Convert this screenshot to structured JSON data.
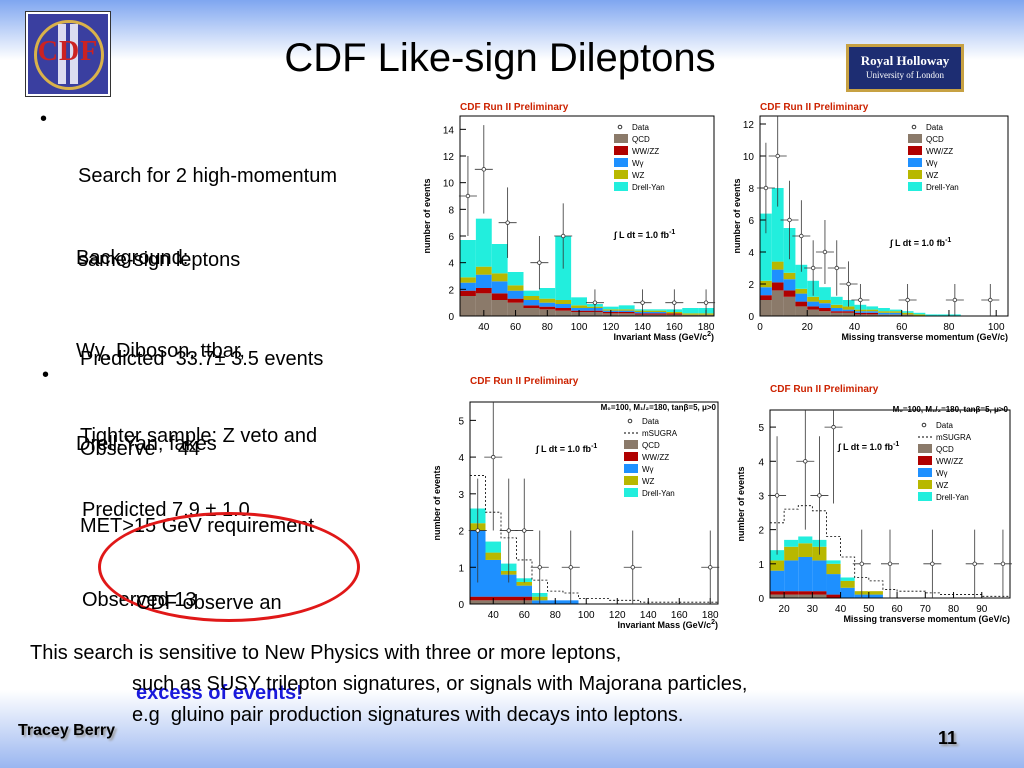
{
  "slide": {
    "title": "CDF Like-sign Dileptons",
    "logo_left_text": "CDF",
    "logo_right_line1": "Royal Holloway",
    "logo_right_line2": "University of London",
    "bullet1_line1": "Search for 2 high-momentum",
    "bullet1_line2": "same-sign leptons",
    "background_line1": "Background:",
    "background_line2": "Wγ, Diboson, ttbar,",
    "background_line3": "Drell-Yan, fakes",
    "pred1_line1": "Predicted  33.7± 3.5 events",
    "pred1_line2": "Observe    44",
    "bullet2_line1": "Tighter sample: Z veto and",
    "bullet2_line2": "MET>15 GeV requirement",
    "pred2_line1": "Predicted 7.9 ± 1.0",
    "pred2_line2": "Observed 13",
    "excess_line1": "CDF observe an",
    "excess_line2": "excess of events!",
    "bottom_line1": "This search is sensitive to New Physics with three or more leptons,",
    "bottom_line2": "such as SUSY trilepton signatures, or signals with Majorana particles,",
    "bottom_line3": "e.g  gluino pair production signatures with decays into leptons.",
    "footer_name": "Tracey Berry",
    "page_number": "11",
    "bullet_char": "•"
  },
  "colors": {
    "QCD": "#8b7a6a",
    "WW/ZZ": "#b00000",
    "Wγ": "#1e90ff",
    "WZ": "#b8b800",
    "Drell-Yan": "#22eedd",
    "label_red": "#cc2200",
    "excess_blue": "#1a1adc"
  },
  "chart_data": [
    {
      "type": "bar",
      "header": "CDF Run II Preliminary",
      "lumi": "∫ L dt = 1.0 fb",
      "lumi_sup": "-1",
      "param_line": "",
      "xlabel": "Invariant Mass (GeV/c",
      "xlabel_sup": "2",
      "xlabel_end": ")",
      "ylabel": "number of events",
      "x_range": [
        25,
        185
      ],
      "ylim": [
        0,
        15
      ],
      "yticks": [
        0,
        2,
        4,
        6,
        8,
        10,
        12,
        14
      ],
      "xticks": [
        40,
        60,
        80,
        100,
        120,
        140,
        160,
        180
      ],
      "bin_edges": [
        25,
        35,
        45,
        55,
        65,
        75,
        85,
        95,
        105,
        115,
        125,
        135,
        145,
        155,
        165,
        175,
        185
      ],
      "legend": [
        "Data",
        "QCD",
        "WW/ZZ",
        "Wγ",
        "WZ",
        "Drell-Yan"
      ],
      "series": [
        {
          "name": "QCD",
          "values": [
            1.5,
            1.7,
            1.2,
            1.0,
            0.6,
            0.5,
            0.4,
            0.3,
            0.3,
            0.2,
            0.2,
            0.1,
            0.1,
            0.1,
            0.1,
            0.1
          ]
        },
        {
          "name": "WW/ZZ",
          "values": [
            0.4,
            0.4,
            0.5,
            0.3,
            0.2,
            0.2,
            0.2,
            0.1,
            0.1,
            0.1,
            0.1,
            0.1,
            0.1,
            0.1,
            0.0,
            0.0
          ]
        },
        {
          "name": "Wγ",
          "values": [
            0.6,
            1.0,
            0.9,
            0.6,
            0.4,
            0.3,
            0.3,
            0.2,
            0.2,
            0.1,
            0.1,
            0.1,
            0.1,
            0.0,
            0.0,
            0.0
          ]
        },
        {
          "name": "WZ",
          "values": [
            0.4,
            0.6,
            0.6,
            0.4,
            0.3,
            0.3,
            0.3,
            0.2,
            0.1,
            0.1,
            0.1,
            0.1,
            0.1,
            0.1,
            0.1,
            0.1
          ]
        },
        {
          "name": "Drell-Yan",
          "values": [
            2.8,
            3.6,
            2.2,
            1.0,
            0.4,
            0.8,
            4.8,
            0.6,
            0.2,
            0.2,
            0.3,
            0.1,
            0.1,
            0.2,
            0.4,
            0.4
          ]
        }
      ],
      "data_points": [
        {
          "x": 30,
          "y": 9
        },
        {
          "x": 40,
          "y": 11
        },
        {
          "x": 55,
          "y": 7
        },
        {
          "x": 75,
          "y": 4
        },
        {
          "x": 90,
          "y": 6
        },
        {
          "x": 110,
          "y": 1
        },
        {
          "x": 140,
          "y": 1
        },
        {
          "x": 160,
          "y": 1
        },
        {
          "x": 180,
          "y": 1
        }
      ]
    },
    {
      "type": "bar",
      "header": "CDF Run II Preliminary",
      "lumi": "∫ L dt = 1.0 fb",
      "lumi_sup": "-1",
      "param_line": "",
      "xlabel": "Missing transverse momentum (GeV/c)",
      "xlabel_sup": "",
      "xlabel_end": "",
      "ylabel": "number of events",
      "x_range": [
        0,
        105
      ],
      "ylim": [
        0,
        12.5
      ],
      "yticks": [
        0,
        2,
        4,
        6,
        8,
        10,
        12
      ],
      "xticks": [
        0,
        20,
        40,
        60,
        80,
        100
      ],
      "bin_edges": [
        0,
        5,
        10,
        15,
        20,
        25,
        30,
        35,
        40,
        45,
        50,
        55,
        60,
        65,
        70,
        75,
        80,
        85,
        90,
        95,
        100,
        105
      ],
      "legend": [
        "Data",
        "QCD",
        "WW/ZZ",
        "Wγ",
        "WZ",
        "Drell-Yan"
      ],
      "series": [
        {
          "name": "QCD",
          "values": [
            1.0,
            1.6,
            1.2,
            0.6,
            0.4,
            0.3,
            0.2,
            0.2,
            0.1,
            0.1,
            0.1,
            0.1,
            0.1,
            0.0,
            0.0,
            0.0,
            0.0,
            0.0,
            0.0,
            0.0,
            0.0
          ]
        },
        {
          "name": "WW/ZZ",
          "values": [
            0.3,
            0.5,
            0.4,
            0.3,
            0.2,
            0.2,
            0.1,
            0.1,
            0.1,
            0.1,
            0.0,
            0.0,
            0.0,
            0.0,
            0.0,
            0.0,
            0.0,
            0.0,
            0.0,
            0.0,
            0.0
          ]
        },
        {
          "name": "Wγ",
          "values": [
            0.5,
            0.8,
            0.7,
            0.5,
            0.3,
            0.3,
            0.2,
            0.1,
            0.1,
            0.1,
            0.1,
            0.1,
            0.0,
            0.0,
            0.0,
            0.0,
            0.0,
            0.0,
            0.0,
            0.0,
            0.0
          ]
        },
        {
          "name": "WZ",
          "values": [
            0.4,
            0.5,
            0.4,
            0.3,
            0.3,
            0.2,
            0.2,
            0.2,
            0.1,
            0.1,
            0.1,
            0.1,
            0.1,
            0.1,
            0.0,
            0.0,
            0.0,
            0.0,
            0.0,
            0.0,
            0.0
          ]
        },
        {
          "name": "Drell-Yan",
          "values": [
            4.2,
            4.6,
            2.8,
            1.5,
            1.0,
            0.8,
            0.5,
            0.4,
            0.3,
            0.2,
            0.2,
            0.1,
            0.1,
            0.1,
            0.1,
            0.1,
            0.1,
            0.0,
            0.0,
            0.0,
            0.0
          ]
        }
      ],
      "data_points": [
        {
          "x": 2.5,
          "y": 8
        },
        {
          "x": 7.5,
          "y": 10
        },
        {
          "x": 12.5,
          "y": 6
        },
        {
          "x": 17.5,
          "y": 5
        },
        {
          "x": 22.5,
          "y": 3
        },
        {
          "x": 27.5,
          "y": 4
        },
        {
          "x": 32.5,
          "y": 3
        },
        {
          "x": 37.5,
          "y": 2
        },
        {
          "x": 42.5,
          "y": 1
        },
        {
          "x": 62.5,
          "y": 1
        },
        {
          "x": 82.5,
          "y": 1
        },
        {
          "x": 97.5,
          "y": 1
        }
      ]
    },
    {
      "type": "bar",
      "header": "CDF Run II Preliminary",
      "lumi": "∫ L dt = 1.0 fb",
      "lumi_sup": "-1",
      "param_line": "M₀=100, M₁/₂=180, tanβ=5, μ>0",
      "xlabel": "Invariant Mass (GeV/c",
      "xlabel_sup": "2",
      "xlabel_end": ")",
      "ylabel": "number of events",
      "x_range": [
        25,
        185
      ],
      "ylim": [
        0,
        5.5
      ],
      "yticks": [
        0,
        1,
        2,
        3,
        4,
        5
      ],
      "xticks": [
        40,
        60,
        80,
        100,
        120,
        140,
        160,
        180
      ],
      "bin_edges": [
        25,
        35,
        45,
        55,
        65,
        75,
        85,
        95,
        105,
        115,
        125,
        135,
        145,
        155,
        165,
        175,
        185
      ],
      "legend": [
        "Data",
        "mSUGRA",
        "QCD",
        "WW/ZZ",
        "Wγ",
        "WZ",
        "Drell-Yan"
      ],
      "msugra": [
        1.8,
        1.6,
        1.4,
        1.0,
        0.7,
        0.5,
        0.4,
        0.3,
        0.3,
        0.2,
        0.2,
        0.1,
        0.1,
        0.1,
        0.1,
        0.1
      ],
      "series": [
        {
          "name": "QCD",
          "values": [
            0.1,
            0.1,
            0.1,
            0.1,
            0.0,
            0.0,
            0.0,
            0.0,
            0.0,
            0.0,
            0.0,
            0.0,
            0.0,
            0.0,
            0.0,
            0.0
          ]
        },
        {
          "name": "WW/ZZ",
          "values": [
            0.1,
            0.1,
            0.1,
            0.1,
            0.0,
            0.0,
            0.0,
            0.0,
            0.0,
            0.0,
            0.0,
            0.0,
            0.0,
            0.0,
            0.0,
            0.0
          ]
        },
        {
          "name": "Wγ",
          "values": [
            1.8,
            1.0,
            0.6,
            0.3,
            0.1,
            0.1,
            0.1,
            0.0,
            0.0,
            0.0,
            0.0,
            0.0,
            0.0,
            0.0,
            0.0,
            0.0
          ]
        },
        {
          "name": "WZ",
          "values": [
            0.2,
            0.2,
            0.1,
            0.1,
            0.1,
            0.0,
            0.0,
            0.0,
            0.0,
            0.0,
            0.0,
            0.0,
            0.0,
            0.0,
            0.0,
            0.0
          ]
        },
        {
          "name": "Drell-Yan",
          "values": [
            0.4,
            0.3,
            0.2,
            0.1,
            0.1,
            0.0,
            0.0,
            0.0,
            0.0,
            0.0,
            0.0,
            0.0,
            0.0,
            0.0,
            0.0,
            0.0
          ]
        }
      ],
      "data_points": [
        {
          "x": 30,
          "y": 2
        },
        {
          "x": 40,
          "y": 4
        },
        {
          "x": 50,
          "y": 2
        },
        {
          "x": 60,
          "y": 2
        },
        {
          "x": 70,
          "y": 1
        },
        {
          "x": 90,
          "y": 1
        },
        {
          "x": 130,
          "y": 1
        },
        {
          "x": 180,
          "y": 1
        }
      ]
    },
    {
      "type": "bar",
      "header": "CDF Run II Preliminary",
      "lumi": "∫ L dt = 1.0 fb",
      "lumi_sup": "-1",
      "param_line": "M₀=100, M₁/₂=180, tanβ=5, μ>0",
      "xlabel": "Missing transverse momentum (GeV/c)",
      "xlabel_sup": "",
      "xlabel_end": "",
      "ylabel": "number of events",
      "x_range": [
        15,
        100
      ],
      "ylim": [
        0,
        5.5
      ],
      "yticks": [
        0,
        1,
        2,
        3,
        4,
        5
      ],
      "xticks": [
        20,
        30,
        40,
        50,
        60,
        70,
        80,
        90
      ],
      "bin_edges": [
        15,
        20,
        25,
        30,
        35,
        40,
        45,
        50,
        55,
        60,
        65,
        70,
        75,
        80,
        85,
        90,
        95,
        100
      ],
      "legend": [
        "Data",
        "mSUGRA",
        "QCD",
        "WW/ZZ",
        "Wγ",
        "WZ",
        "Drell-Yan"
      ],
      "msugra": [
        1.6,
        1.8,
        1.8,
        1.7,
        1.4,
        1.2,
        0.8,
        0.6,
        0.5,
        0.4,
        0.4,
        0.3,
        0.2,
        0.2,
        0.2,
        0.1,
        0.1
      ],
      "series": [
        {
          "name": "QCD",
          "values": [
            0.1,
            0.1,
            0.1,
            0.1,
            0.0,
            0.0,
            0.0,
            0.0,
            0.0,
            0.0,
            0.0,
            0.0,
            0.0,
            0.0,
            0.0,
            0.0,
            0.0
          ]
        },
        {
          "name": "WW/ZZ",
          "values": [
            0.1,
            0.1,
            0.1,
            0.1,
            0.1,
            0.0,
            0.0,
            0.0,
            0.0,
            0.0,
            0.0,
            0.0,
            0.0,
            0.0,
            0.0,
            0.0,
            0.0
          ]
        },
        {
          "name": "Wγ",
          "values": [
            0.6,
            0.9,
            1.0,
            0.9,
            0.6,
            0.3,
            0.1,
            0.1,
            0.0,
            0.0,
            0.0,
            0.0,
            0.0,
            0.0,
            0.0,
            0.0,
            0.0
          ]
        },
        {
          "name": "WZ",
          "values": [
            0.3,
            0.4,
            0.4,
            0.4,
            0.3,
            0.2,
            0.1,
            0.1,
            0.0,
            0.0,
            0.0,
            0.0,
            0.0,
            0.0,
            0.0,
            0.0,
            0.0
          ]
        },
        {
          "name": "Drell-Yan",
          "values": [
            0.3,
            0.2,
            0.2,
            0.2,
            0.1,
            0.1,
            0.0,
            0.0,
            0.0,
            0.0,
            0.0,
            0.0,
            0.0,
            0.0,
            0.0,
            0.0,
            0.0
          ]
        }
      ],
      "data_points": [
        {
          "x": 17.5,
          "y": 3
        },
        {
          "x": 27.5,
          "y": 4
        },
        {
          "x": 32.5,
          "y": 3
        },
        {
          "x": 37.5,
          "y": 5
        },
        {
          "x": 47.5,
          "y": 1
        },
        {
          "x": 57.5,
          "y": 1
        },
        {
          "x": 72.5,
          "y": 1
        },
        {
          "x": 87.5,
          "y": 1
        },
        {
          "x": 97.5,
          "y": 1
        }
      ]
    }
  ]
}
